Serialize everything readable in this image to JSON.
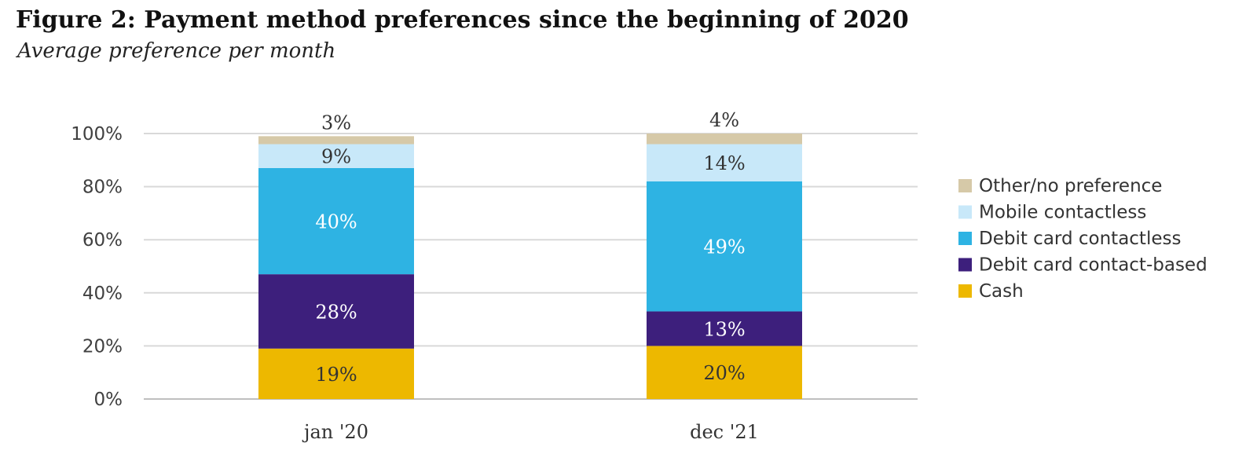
{
  "chart_data": {
    "type": "bar",
    "stacked": true,
    "title": "Figure 2: Payment method preferences since the beginning of 2020",
    "subtitle": "Average preference per month",
    "xlabel": "",
    "ylabel": "",
    "ylim": [
      0,
      100
    ],
    "yticks": [
      0,
      20,
      40,
      60,
      80,
      100
    ],
    "ytick_suffix": "%",
    "grid": true,
    "legend_position": "right",
    "categories": [
      "jan '20",
      "dec '21"
    ],
    "series": [
      {
        "name": "Cash",
        "color": "#EDB800",
        "label_color": "#333333",
        "values": [
          19,
          20
        ]
      },
      {
        "name": "Debit card contact-based",
        "color": "#3D1F7C",
        "label_color": "#ffffff",
        "values": [
          28,
          13
        ]
      },
      {
        "name": "Debit card contactless",
        "color": "#2EB3E3",
        "label_color": "#ffffff",
        "values": [
          40,
          49
        ]
      },
      {
        "name": "Mobile contactless",
        "color": "#C8E8F9",
        "label_color": "#333333",
        "values": [
          9,
          14
        ]
      },
      {
        "name": "Other/no preference",
        "color": "#D6C9A8",
        "label_color": "#333333",
        "values": [
          3,
          4
        ]
      }
    ],
    "colors": {
      "grid": "#D9D9D9",
      "axis": "#BFBFBF"
    }
  }
}
